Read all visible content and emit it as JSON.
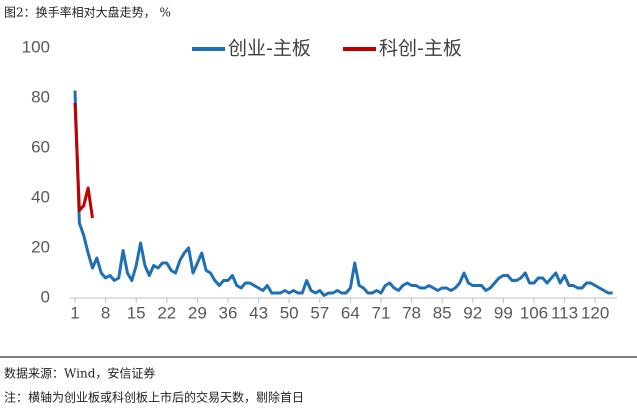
{
  "chart_data": {
    "type": "line",
    "title": "图2：换手率相对大盘走势，  %",
    "source": "数据来源：Wind，安信证券",
    "note": "注：横轴为创业板或科创板上市后的交易天数，剔除首日",
    "xlim": [
      1,
      125
    ],
    "xticks": [
      1,
      8,
      15,
      22,
      29,
      36,
      43,
      50,
      57,
      64,
      71,
      78,
      85,
      92,
      99,
      106,
      113,
      120
    ],
    "ylim": [
      0,
      100
    ],
    "yticks": [
      0,
      20,
      40,
      60,
      80,
      100
    ],
    "legend": "top",
    "series": [
      {
        "name": "创业-主板",
        "color": "#1f6fb4",
        "x": [
          1,
          2,
          3,
          4,
          5,
          6,
          7,
          8,
          9,
          10,
          11,
          12,
          13,
          14,
          15,
          16,
          17,
          18,
          19,
          20,
          21,
          22,
          23,
          24,
          25,
          26,
          27,
          28,
          29,
          30,
          31,
          32,
          33,
          34,
          35,
          36,
          37,
          38,
          39,
          40,
          41,
          42,
          43,
          44,
          45,
          46,
          47,
          48,
          49,
          50,
          51,
          52,
          53,
          54,
          55,
          56,
          57,
          58,
          59,
          60,
          61,
          62,
          63,
          64,
          65,
          66,
          67,
          68,
          69,
          70,
          71,
          72,
          73,
          74,
          75,
          76,
          77,
          78,
          79,
          80,
          81,
          82,
          83,
          84,
          85,
          86,
          87,
          88,
          89,
          90,
          91,
          92,
          93,
          94,
          95,
          96,
          97,
          98,
          99,
          100,
          101,
          102,
          103,
          104,
          105,
          106,
          107,
          108,
          109,
          110,
          111,
          112,
          113,
          114,
          115,
          116,
          117,
          118,
          119,
          120,
          121,
          122,
          123,
          124
        ],
        "values": [
          83,
          30,
          25,
          18,
          12,
          16,
          10,
          8,
          9,
          7,
          8,
          19,
          10,
          7,
          13,
          22,
          13,
          9,
          13,
          12,
          14,
          14,
          11,
          10,
          15,
          18,
          20,
          10,
          14,
          18,
          11,
          10,
          7,
          5,
          7,
          7,
          9,
          5,
          4,
          6,
          6,
          5,
          4,
          3,
          5,
          2,
          2,
          2,
          3,
          2,
          3,
          2,
          2,
          7,
          3,
          2,
          3,
          1,
          2,
          2,
          3,
          2,
          2,
          4,
          14,
          5,
          4,
          2,
          2,
          3,
          2,
          5,
          6,
          4,
          3,
          5,
          6,
          5,
          5,
          4,
          4,
          5,
          4,
          3,
          4,
          4,
          3,
          4,
          6,
          10,
          6,
          5,
          5,
          5,
          3,
          4,
          6,
          8,
          9,
          9,
          7,
          7,
          8,
          10,
          6,
          6,
          8,
          8,
          6,
          8,
          10,
          6,
          9,
          5,
          5,
          4,
          4,
          6,
          6,
          5,
          4,
          3,
          2,
          2
        ]
      },
      {
        "name": "科创-主板",
        "color": "#c00000",
        "x": [
          1,
          2,
          3,
          4,
          5
        ],
        "values": [
          78,
          35,
          37,
          44,
          32
        ]
      }
    ]
  }
}
